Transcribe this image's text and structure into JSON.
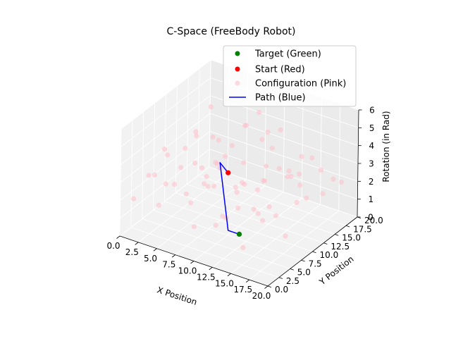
{
  "chart_data": {
    "type": "scatter",
    "projection": "3d",
    "title": "C-Space (FreeBody Robot)",
    "xlabel": "X Position",
    "ylabel": "Y Position",
    "zlabel": "Rotation (in Rad)",
    "xlim": [
      0,
      20
    ],
    "ylim": [
      0,
      20
    ],
    "zlim": [
      0,
      6
    ],
    "x_ticks": [
      "0.0",
      "2.5",
      "5.0",
      "7.5",
      "10.0",
      "12.5",
      "15.0",
      "17.5",
      "20.0"
    ],
    "y_ticks": [
      "0.0",
      "2.5",
      "5.0",
      "7.5",
      "10.0",
      "12.5",
      "15.0",
      "17.5",
      "20.0"
    ],
    "z_ticks": [
      "0",
      "1",
      "2",
      "3",
      "4",
      "5",
      "6"
    ],
    "grid": true,
    "legend_position": "top-right",
    "series": [
      {
        "name": "Target (Green)",
        "kind": "point",
        "color": "#008000",
        "points": [
          [
            11.0,
            8.5,
            0.0
          ]
        ]
      },
      {
        "name": "Start (Red)",
        "kind": "point",
        "color": "#ff0000",
        "points": [
          [
            8.5,
            10.0,
            2.8
          ]
        ]
      },
      {
        "name": "Configuration (Pink)",
        "kind": "scatter",
        "color": "#ffc0cb",
        "points": [
          [
            1.0,
            18.5,
            3.8
          ],
          [
            3.0,
            17.0,
            2.5
          ],
          [
            5.5,
            19.0,
            3.3
          ],
          [
            7.0,
            16.0,
            2.0
          ],
          [
            9.0,
            18.0,
            3.6
          ],
          [
            11.0,
            17.5,
            4.1
          ],
          [
            13.0,
            19.0,
            2.6
          ],
          [
            15.0,
            18.0,
            3.0
          ],
          [
            17.0,
            19.5,
            1.8
          ],
          [
            19.0,
            18.0,
            2.2
          ],
          [
            2.0,
            15.0,
            1.2
          ],
          [
            4.0,
            14.0,
            3.4
          ],
          [
            6.0,
            13.5,
            2.7
          ],
          [
            8.0,
            14.5,
            4.5
          ],
          [
            10.0,
            15.5,
            1.5
          ],
          [
            12.0,
            14.0,
            3.9
          ],
          [
            14.0,
            15.0,
            2.4
          ],
          [
            16.0,
            13.5,
            3.1
          ],
          [
            18.0,
            15.5,
            1.9
          ],
          [
            1.5,
            12.0,
            2.8
          ],
          [
            3.5,
            11.0,
            4.2
          ],
          [
            5.0,
            10.5,
            1.6
          ],
          [
            7.5,
            12.5,
            3.7
          ],
          [
            9.5,
            11.5,
            2.1
          ],
          [
            11.5,
            12.5,
            4.6
          ],
          [
            13.5,
            11.0,
            1.4
          ],
          [
            15.5,
            12.0,
            3.5
          ],
          [
            17.5,
            10.5,
            2.3
          ],
          [
            19.5,
            12.5,
            4.0
          ],
          [
            0.5,
            9.0,
            3.2
          ],
          [
            2.5,
            8.0,
            1.7
          ],
          [
            4.5,
            9.5,
            4.4
          ],
          [
            6.5,
            8.5,
            2.6
          ],
          [
            8.5,
            7.5,
            3.8
          ],
          [
            10.5,
            9.0,
            1.3
          ],
          [
            12.5,
            7.0,
            3.3
          ],
          [
            14.5,
            8.5,
            4.3
          ],
          [
            16.5,
            7.5,
            2.0
          ],
          [
            18.5,
            9.5,
            3.6
          ],
          [
            1.0,
            6.0,
            2.4
          ],
          [
            3.0,
            5.5,
            3.9
          ],
          [
            5.0,
            6.5,
            1.8
          ],
          [
            7.0,
            5.0,
            4.1
          ],
          [
            9.0,
            6.0,
            2.9
          ],
          [
            11.0,
            5.5,
            1.5
          ],
          [
            13.0,
            4.5,
            3.4
          ],
          [
            15.0,
            6.0,
            2.2
          ],
          [
            17.0,
            4.0,
            4.7
          ],
          [
            19.0,
            5.5,
            1.6
          ],
          [
            2.0,
            3.0,
            3.1
          ],
          [
            4.0,
            2.0,
            1.9
          ],
          [
            6.0,
            3.5,
            4.0
          ],
          [
            8.0,
            2.5,
            2.5
          ],
          [
            10.0,
            3.0,
            3.6
          ],
          [
            12.0,
            1.5,
            2.0
          ],
          [
            14.0,
            2.5,
            4.2
          ],
          [
            16.0,
            1.0,
            1.4
          ],
          [
            18.0,
            2.0,
            3.0
          ],
          [
            1.5,
            0.5,
            2.2
          ],
          [
            5.5,
            1.0,
            3.5
          ],
          [
            9.5,
            0.8,
            1.7
          ],
          [
            13.5,
            0.5,
            2.9
          ],
          [
            17.5,
            0.8,
            3.8
          ],
          [
            3.5,
            16.5,
            1.1
          ],
          [
            7.5,
            18.5,
            4.4
          ],
          [
            11.5,
            16.5,
            2.2
          ],
          [
            15.5,
            16.0,
            1.2
          ],
          [
            6.5,
            10.5,
            3.0
          ],
          [
            12.5,
            10.0,
            2.4
          ],
          [
            16.5,
            10.0,
            3.7
          ]
        ]
      },
      {
        "name": "Path (Blue)",
        "kind": "line",
        "color": "#0000ff",
        "points": [
          [
            11.0,
            8.5,
            0.0
          ],
          [
            9.5,
            8.5,
            0.0
          ],
          [
            6.5,
            11.5,
            2.8
          ],
          [
            8.5,
            10.0,
            2.8
          ]
        ]
      }
    ]
  }
}
